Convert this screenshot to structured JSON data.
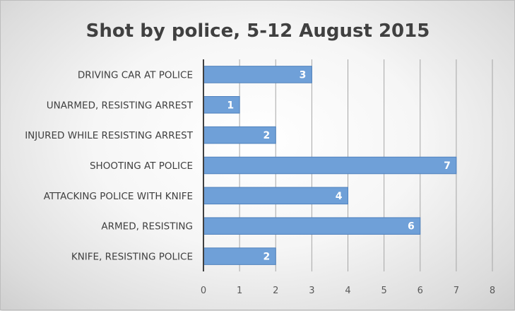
{
  "chart_data": {
    "type": "bar",
    "orientation": "horizontal",
    "title": "Shot by police, 5-12 August 2015",
    "xlabel": "",
    "ylabel": "",
    "categories": [
      "DRIVING CAR AT POLICE",
      "UNARMED, RESISTING ARREST",
      "INJURED WHILE RESISTING ARREST",
      "SHOOTING AT POLICE",
      "ATTACKING POLICE WITH KNIFE",
      "ARMED, RESISTING",
      "KNIFE, RESISTING POLICE"
    ],
    "values": [
      3,
      1,
      2,
      7,
      4,
      6,
      2
    ],
    "xlim": [
      0,
      8
    ],
    "ticks": [
      "0",
      "1",
      "2",
      "3",
      "4",
      "5",
      "6",
      "7",
      "8"
    ],
    "grid": true,
    "data_labels": true,
    "legend": "none",
    "colors": {
      "bar_fill": "#6fa0d8",
      "bar_stroke": "#4f81bd",
      "grid": "#a6a6a6",
      "axis": "#404040"
    }
  }
}
